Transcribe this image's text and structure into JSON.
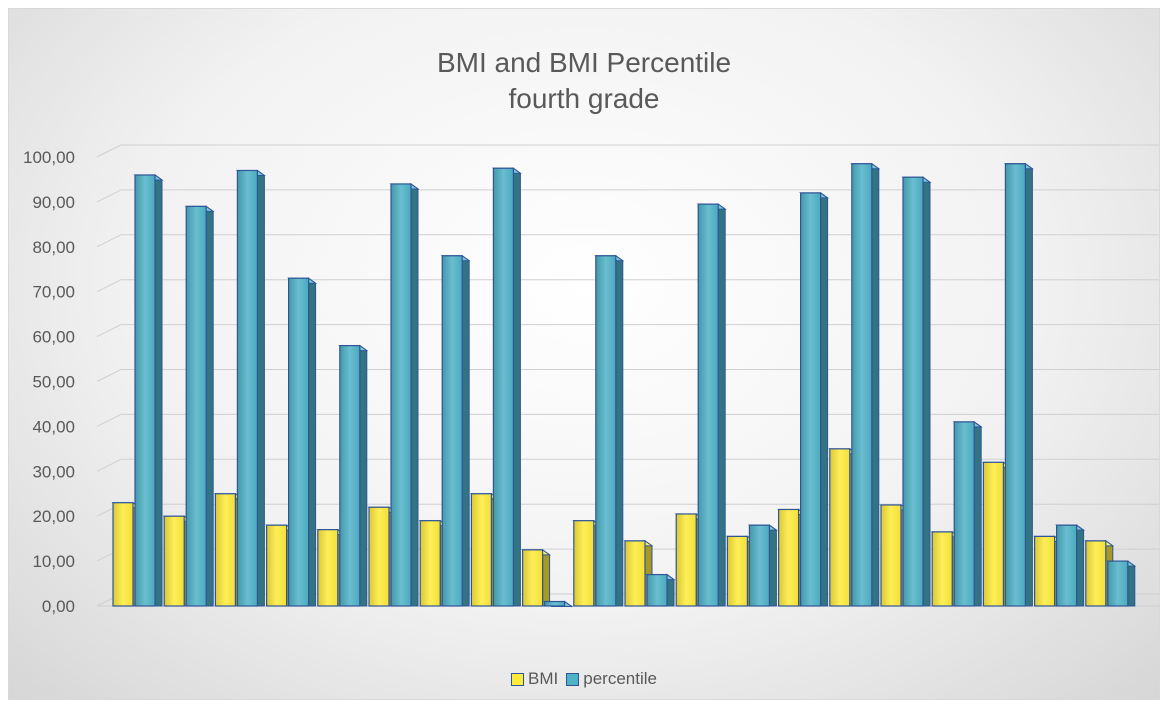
{
  "chart_data": {
    "type": "bar",
    "title": "BMI and BMI Percentile",
    "subtitle": "fourth grade",
    "xlabel": "",
    "ylabel": "",
    "ylim": [
      0,
      100
    ],
    "y_ticks": [
      "0,00",
      "10,00",
      "20,00",
      "30,00",
      "40,00",
      "50,00",
      "60,00",
      "70,00",
      "80,00",
      "90,00",
      "100,00"
    ],
    "grid": true,
    "legend_position": "bottom",
    "style": "3d-clustered-column",
    "series": [
      {
        "name": "BMI",
        "color": "#ffeb3b",
        "values": [
          23,
          20,
          25,
          18,
          17,
          22,
          19,
          25,
          12.5,
          19,
          14.5,
          20.5,
          15.5,
          21.5,
          35,
          22.5,
          16.5,
          32,
          15.5,
          14.5
        ]
      },
      {
        "name": "percentile",
        "color": "#4fb3c8",
        "values": [
          96,
          89,
          97,
          73,
          58,
          94,
          78,
          97.5,
          1,
          78,
          7,
          89.5,
          18,
          92,
          98.5,
          95.5,
          41,
          98.5,
          18,
          10
        ]
      }
    ]
  }
}
